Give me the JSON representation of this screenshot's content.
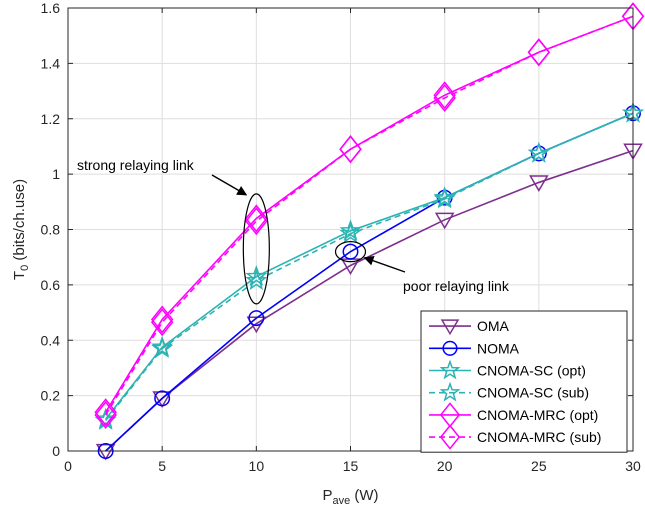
{
  "chart_data": {
    "type": "line",
    "xlabel_main": "P",
    "xlabel_sub": "ave",
    "xlabel_unit": " (W)",
    "ylabel_main": "T",
    "ylabel_sub": "0",
    "ylabel_unit": " (bits/ch.use)",
    "xlim": [
      0,
      30
    ],
    "ylim": [
      0,
      1.6
    ],
    "xticks": [
      0,
      5,
      10,
      15,
      20,
      25,
      30
    ],
    "yticks": [
      0,
      0.2,
      0.4,
      0.6,
      0.8,
      1,
      1.2,
      1.4,
      1.6
    ],
    "grid": true,
    "legend_position": "bottom-right",
    "x": [
      2,
      5,
      10,
      15,
      20,
      25,
      30
    ],
    "series": [
      {
        "name": "OMA",
        "color": "#7E2F8E",
        "marker": "triangle-down",
        "dash": false,
        "values": [
          0.0,
          0.19,
          0.46,
          0.67,
          0.835,
          0.97,
          1.085
        ]
      },
      {
        "name": "NOMA",
        "color": "#0000FF",
        "marker": "circle",
        "dash": false,
        "values": [
          0.0,
          0.19,
          0.48,
          0.72,
          0.915,
          1.075,
          1.22
        ]
      },
      {
        "name": "CNOMA-SC (opt)",
        "color": "#2CB3B3",
        "marker": "star",
        "dash": false,
        "values": [
          0.115,
          0.375,
          0.63,
          0.795,
          0.915,
          1.075,
          1.22
        ]
      },
      {
        "name": "CNOMA-SC (sub)",
        "color": "#2CB3B3",
        "marker": "star",
        "dash": true,
        "values": [
          0.11,
          0.37,
          0.615,
          0.785,
          0.91,
          1.075,
          1.22
        ]
      },
      {
        "name": "CNOMA-MRC (opt)",
        "color": "#FF00FF",
        "marker": "diamond",
        "dash": false,
        "values": [
          0.14,
          0.475,
          0.84,
          1.09,
          1.285,
          1.44,
          1.57
        ]
      },
      {
        "name": "CNOMA-MRC (sub)",
        "color": "#FF00FF",
        "marker": "diamond",
        "dash": true,
        "values": [
          0.13,
          0.465,
          0.83,
          1.09,
          1.275,
          1.44,
          1.57
        ]
      }
    ],
    "annotations": [
      {
        "text": "strong relaying link",
        "target_x": 10,
        "target_y": 0.73
      },
      {
        "text": "poor relaying link",
        "target_x": 15,
        "target_y": 0.72
      }
    ]
  }
}
